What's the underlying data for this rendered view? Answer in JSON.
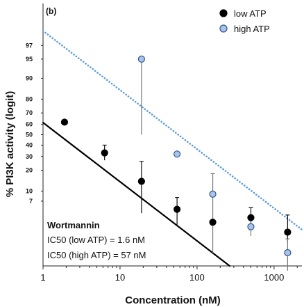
{
  "chart_data": {
    "type": "scatter",
    "panel_label": "(b)",
    "xlabel": "Concentration (nM)",
    "ylabel": "% PI3K activity (logit)",
    "x_scale": "log",
    "x_ticks": [
      1,
      10,
      100,
      1000
    ],
    "x_tick_labels": [
      "1",
      "10",
      "100",
      "1000"
    ],
    "xlim": [
      1,
      2300
    ],
    "y_scale": "logit",
    "ylim": [
      0.6,
      99.4
    ],
    "y_ticks": [
      97,
      95,
      90,
      80,
      70,
      60,
      50,
      40,
      30,
      20,
      10,
      7
    ],
    "y_tick_labels": [
      "97",
      "95",
      "90",
      "80",
      "70",
      "60",
      "50",
      "40",
      "30",
      "20",
      "10",
      "7"
    ],
    "legend_position": "top-right",
    "grid": false,
    "series": [
      {
        "name": "low ATP",
        "color": "#000000",
        "edge": "#000000",
        "fit": {
          "ic50_nM": 1.6,
          "color": "#000000",
          "style": "solid"
        },
        "points": [
          {
            "x": 1.9,
            "y": 62
          },
          {
            "x": 6.3,
            "y": 33,
            "err_low": 27,
            "err_high": 40
          },
          {
            "x": 19,
            "y": 14,
            "err_low": 4.5,
            "err_high": 26
          },
          {
            "x": 55,
            "y": 5.2,
            "err_low": 2.8,
            "err_high": 8
          },
          {
            "x": 160,
            "y": 3.2
          },
          {
            "x": 500,
            "y": 3.8,
            "err_low": 2.5,
            "err_high": 5.5
          },
          {
            "x": 1500,
            "y": 2.2,
            "err_low": 1.5,
            "err_high": 4.2
          }
        ]
      },
      {
        "name": "high ATP",
        "color": "#a9c4e4",
        "edge": "#2f5597",
        "fit": {
          "ic50_nM": 57,
          "color": "#5b9bd5",
          "style": "dotted"
        },
        "points": [
          {
            "x": 19,
            "y": 95,
            "err_low": 50,
            "err_high": 95
          },
          {
            "x": 55,
            "y": 32
          },
          {
            "x": 160,
            "y": 9,
            "err_low": 1.0,
            "err_high": 18
          },
          {
            "x": 500,
            "y": 2.7,
            "err_low": 1.9,
            "err_high": 3.8
          },
          {
            "x": 1500,
            "y": 1.0,
            "err_low": 0.5,
            "err_high": 1.7
          }
        ]
      }
    ],
    "annotation": {
      "title": "Wortmannin",
      "lines": [
        "IC50 (low ATP) = 1.6 nM",
        "IC50 (high ATP) = 57 nM"
      ]
    }
  }
}
